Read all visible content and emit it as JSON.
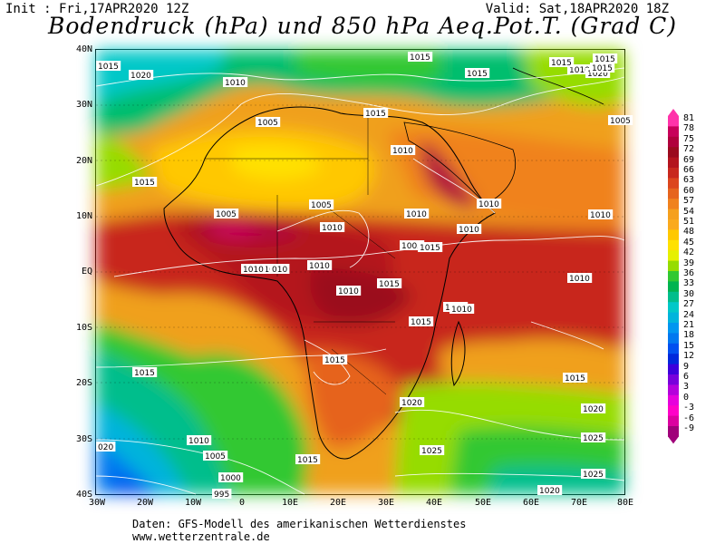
{
  "header": {
    "init": "Init : Fri,17APR2020 12Z",
    "valid": "Valid: Sat,18APR2020 18Z",
    "title": "Bodendruck (hPa) und 850 hPa Aeq.Pot.T. (Grad C)"
  },
  "axes": {
    "lat_labels": [
      "40N",
      "30N",
      "20N",
      "10N",
      "EQ",
      "10S",
      "20S",
      "30S",
      "40S"
    ],
    "lon_labels": [
      "30W",
      "20W",
      "10W",
      "0",
      "10E",
      "20E",
      "30E",
      "40E",
      "50E",
      "60E",
      "70E",
      "80E"
    ]
  },
  "legend": {
    "values": [
      "81",
      "78",
      "75",
      "72",
      "69",
      "66",
      "63",
      "60",
      "57",
      "54",
      "51",
      "48",
      "45",
      "42",
      "39",
      "36",
      "33",
      "30",
      "27",
      "24",
      "21",
      "18",
      "15",
      "12",
      "9",
      "6",
      "3",
      "0",
      "-3",
      "-6",
      "-9"
    ],
    "colors": [
      "#ff33aa",
      "#c8005a",
      "#b0003c",
      "#9b0a1e",
      "#b4141e",
      "#c8281e",
      "#dc461e",
      "#e6641e",
      "#f0821e",
      "#f5a01e",
      "#faaa1e",
      "#ffc800",
      "#ffe100",
      "#e6f000",
      "#96dc00",
      "#32c832",
      "#00b450",
      "#00be8c",
      "#00c8c8",
      "#00b4dc",
      "#0096f0",
      "#0078f0",
      "#0050f0",
      "#0028dc",
      "#3c00dc",
      "#7800dc",
      "#b400dc",
      "#e600dc",
      "#ff00c8",
      "#dc00a0",
      "#a0007a"
    ]
  },
  "isobars": [
    {
      "text": "1020"
    },
    {
      "text": "1010"
    },
    {
      "text": "1015"
    },
    {
      "text": "1015"
    },
    {
      "text": "1005"
    },
    {
      "text": "1015"
    },
    {
      "text": "1015"
    },
    {
      "text": "1010"
    },
    {
      "text": "1015"
    },
    {
      "text": "1020"
    },
    {
      "text": "1015"
    },
    {
      "text": "1005"
    },
    {
      "text": "1010"
    },
    {
      "text": "1015"
    },
    {
      "text": "1010"
    },
    {
      "text": "1005"
    },
    {
      "text": "1005"
    },
    {
      "text": "1010"
    },
    {
      "text": "1005"
    },
    {
      "text": "1010"
    },
    {
      "text": "1010"
    },
    {
      "text": "1015"
    },
    {
      "text": "1010"
    },
    {
      "text": "1010"
    },
    {
      "text": "1010"
    },
    {
      "text": "1010"
    },
    {
      "text": "010"
    },
    {
      "text": "1010"
    },
    {
      "text": "1015"
    },
    {
      "text": "1010"
    },
    {
      "text": "1015"
    },
    {
      "text": "1010"
    },
    {
      "text": "1015"
    },
    {
      "text": "1015"
    },
    {
      "text": "1015"
    },
    {
      "text": "1020"
    },
    {
      "text": "1020"
    },
    {
      "text": "1010"
    },
    {
      "text": "1005"
    },
    {
      "text": "020"
    },
    {
      "text": "1000"
    },
    {
      "text": "995"
    },
    {
      "text": "1015"
    },
    {
      "text": "1025"
    },
    {
      "text": "1025"
    },
    {
      "text": "1025"
    },
    {
      "text": "1020"
    },
    {
      "text": "1015"
    },
    {
      "text": "1010"
    }
  ],
  "footer": {
    "line1": "Daten: GFS-Modell des amerikanischen Wetterdienstes",
    "line2": "www.wetterzentrale.de"
  }
}
